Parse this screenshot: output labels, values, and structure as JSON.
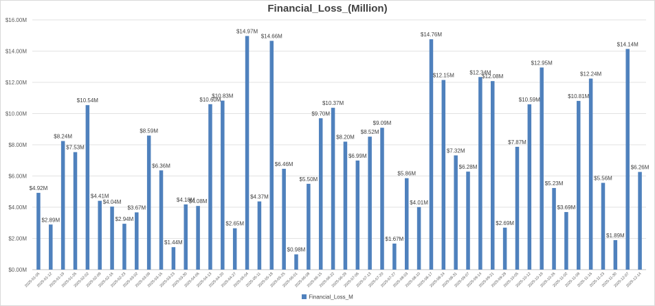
{
  "chart_data": {
    "type": "bar",
    "title": "Financial_Loss_(Million)",
    "xlabel": "",
    "ylabel": "",
    "ylim": [
      0,
      16
    ],
    "ytick_values": [
      0,
      2,
      4,
      6,
      8,
      10,
      12,
      14,
      16
    ],
    "ytick_labels": [
      "$0.00M",
      "$2.00M",
      "$4.00M",
      "$6.00M",
      "$8.00M",
      "$10.00M",
      "$12.00M",
      "$14.00M",
      "$16.00M"
    ],
    "grid": true,
    "legend_position": "bottom",
    "bar_color": "#4f81bd",
    "categories": [
      "2025-01-05",
      "2025-01-12",
      "2025-01-19",
      "2025-01-26",
      "2025-02-02",
      "2025-02-09",
      "2025-02-16",
      "2025-02-23",
      "2025-03-02",
      "2025-03-09",
      "2025-03-16",
      "2025-03-23",
      "2025-03-30",
      "2025-04-06",
      "2025-04-13",
      "2025-04-20",
      "2025-04-27",
      "2025-05-04",
      "2025-05-11",
      "2025-05-18",
      "2025-05-25",
      "2025-06-01",
      "2025-06-08",
      "2025-06-15",
      "2025-06-22",
      "2025-06-29",
      "2025-07-06",
      "2025-07-13",
      "2025-07-20",
      "2025-07-27",
      "2025-08-03",
      "2025-08-10",
      "2025-08-17",
      "2025-08-24",
      "2025-08-31",
      "2025-09-07",
      "2025-09-14",
      "2025-09-21",
      "2025-09-28",
      "2025-10-05",
      "2025-10-12",
      "2025-10-19",
      "2025-10-26",
      "2025-11-02",
      "2025-11-09",
      "2025-11-16",
      "2025-11-23",
      "2025-11-30",
      "2025-12-07",
      "2025-12-14"
    ],
    "series": [
      {
        "name": "Financial_Loss_M",
        "values": [
          4.92,
          2.89,
          8.24,
          7.53,
          10.54,
          4.41,
          4.04,
          2.94,
          3.67,
          8.59,
          6.36,
          1.44,
          4.18,
          4.08,
          10.6,
          10.83,
          2.65,
          14.97,
          4.37,
          14.66,
          6.46,
          0.98,
          5.5,
          9.7,
          10.37,
          8.2,
          6.99,
          8.52,
          9.09,
          1.67,
          5.86,
          4.01,
          14.76,
          12.15,
          7.32,
          6.28,
          12.34,
          12.08,
          2.69,
          7.87,
          10.59,
          12.95,
          5.23,
          3.69,
          10.81,
          12.24,
          5.56,
          1.89,
          14.14,
          6.26
        ],
        "data_labels": [
          "$4.92M",
          "$2.89M",
          "$8.24M",
          "$7.53M",
          "$10.54M",
          "$4.41M",
          "$4.04M",
          "$2.94M",
          "$3.67M",
          "$8.59M",
          "$6.36M",
          "$1.44M",
          "$4.18M",
          "$4.08M",
          "$10.60M",
          "$10.83M",
          "$2.65M",
          "$14.97M",
          "$4.37M",
          "$14.66M",
          "$6.46M",
          "$0.98M",
          "$5.50M",
          "$9.70M",
          "$10.37M",
          "$8.20M",
          "$6.99M",
          "$8.52M",
          "$9.09M",
          "$1.67M",
          "$5.86M",
          "$4.01M",
          "$14.76M",
          "$12.15M",
          "$7.32M",
          "$6.28M",
          "$12.34M",
          "$12.08M",
          "$2.69M",
          "$7.87M",
          "$10.59M",
          "$12.95M",
          "$5.23M",
          "$3.69M",
          "$10.81M",
          "$12.24M",
          "$5.56M",
          "$1.89M",
          "$14.14M",
          "$6.26M"
        ]
      }
    ]
  }
}
